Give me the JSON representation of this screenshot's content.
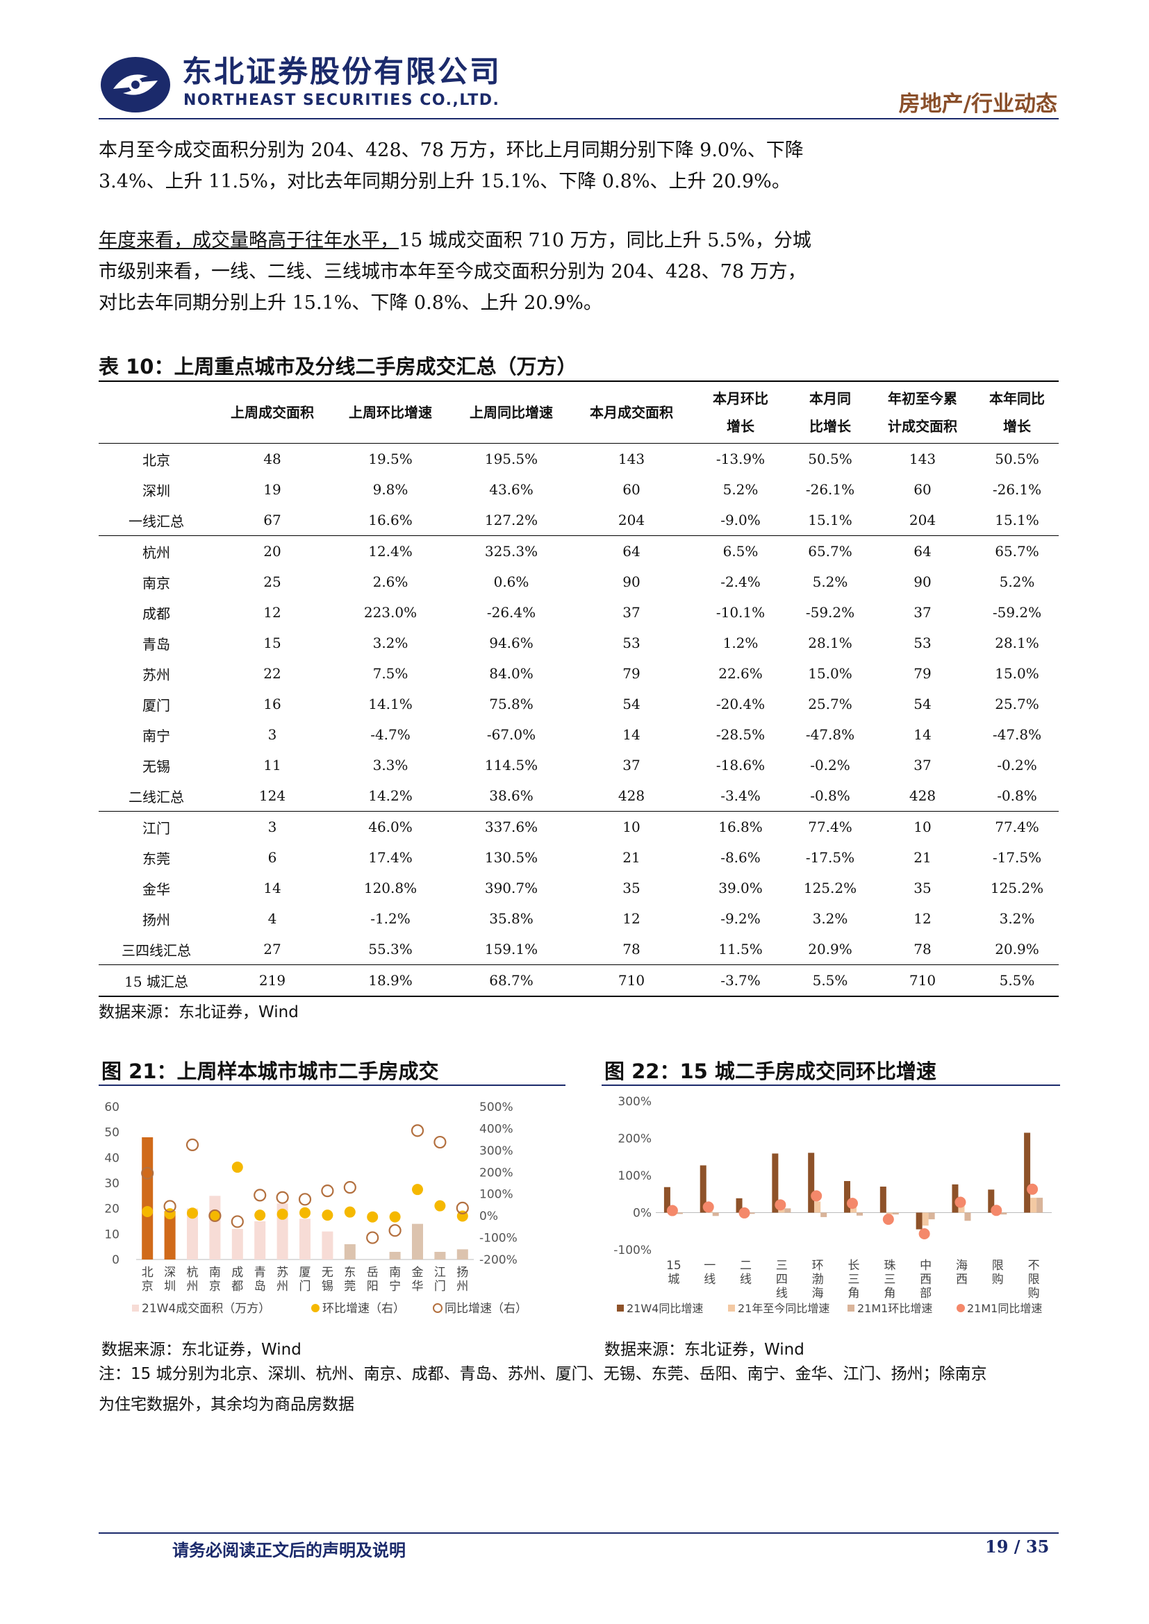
{
  "header": {
    "company_cn": "东北证券股份有限公司",
    "company_en": "NORTHEAST SECURITIES CO.,LTD.",
    "section_tag": "房地产/行业动态"
  },
  "paragraphs": {
    "p1_line1": "本月至今成交面积分别为 204、428、78 万方，环比上月同期分别下降 9.0%、下降",
    "p1_line2": "3.4%、上升 11.5%，对比去年同期分别上升 15.1%、下降 0.8%、上升 20.9%。",
    "p2_underlined": "年度来看，成交量略高于往年水平，",
    "p2_line1_rest": "15 城成交面积 710 万方，同比上升 5.5%，分城",
    "p2_line2": "市级别来看，一线、二线、三线城市本年至今成交面积分别为 204、428、78 万方，",
    "p2_line3": "对比去年同期分别上升 15.1%、下降 0.8%、上升 20.9%。"
  },
  "table": {
    "title": "表 10：上周重点城市及分线二手房成交汇总（万方）",
    "headers": [
      {
        "l1": "",
        "l2": ""
      },
      {
        "l1": "上周成交面积",
        "l2": ""
      },
      {
        "l1": "上周环比增速",
        "l2": ""
      },
      {
        "l1": "上周同比增速",
        "l2": ""
      },
      {
        "l1": "本月成交面积",
        "l2": ""
      },
      {
        "l1": "本月环比",
        "l2": "增长"
      },
      {
        "l1": "本月同",
        "l2": "比增长"
      },
      {
        "l1": "年初至今累",
        "l2": "计成交面积"
      },
      {
        "l1": "本年同比",
        "l2": "增长"
      }
    ],
    "rows": [
      [
        "北京",
        "48",
        "19.5%",
        "195.5%",
        "143",
        "-13.9%",
        "50.5%",
        "143",
        "50.5%"
      ],
      [
        "深圳",
        "19",
        "9.8%",
        "43.6%",
        "60",
        "5.2%",
        "-26.1%",
        "60",
        "-26.1%"
      ],
      [
        "一线汇总",
        "67",
        "16.6%",
        "127.2%",
        "204",
        "-9.0%",
        "15.1%",
        "204",
        "15.1%"
      ],
      [
        "杭州",
        "20",
        "12.4%",
        "325.3%",
        "64",
        "6.5%",
        "65.7%",
        "64",
        "65.7%"
      ],
      [
        "南京",
        "25",
        "2.6%",
        "0.6%",
        "90",
        "-2.4%",
        "5.2%",
        "90",
        "5.2%"
      ],
      [
        "成都",
        "12",
        "223.0%",
        "-26.4%",
        "37",
        "-10.1%",
        "-59.2%",
        "37",
        "-59.2%"
      ],
      [
        "青岛",
        "15",
        "3.2%",
        "94.6%",
        "53",
        "1.2%",
        "28.1%",
        "53",
        "28.1%"
      ],
      [
        "苏州",
        "22",
        "7.5%",
        "84.0%",
        "79",
        "22.6%",
        "15.0%",
        "79",
        "15.0%"
      ],
      [
        "厦门",
        "16",
        "14.1%",
        "75.8%",
        "54",
        "-20.4%",
        "25.7%",
        "54",
        "25.7%"
      ],
      [
        "南宁",
        "3",
        "-4.7%",
        "-67.0%",
        "14",
        "-28.5%",
        "-47.8%",
        "14",
        "-47.8%"
      ],
      [
        "无锡",
        "11",
        "3.3%",
        "114.5%",
        "37",
        "-18.6%",
        "-0.2%",
        "37",
        "-0.2%"
      ],
      [
        "二线汇总",
        "124",
        "14.2%",
        "38.6%",
        "428",
        "-3.4%",
        "-0.8%",
        "428",
        "-0.8%"
      ],
      [
        "江门",
        "3",
        "46.0%",
        "337.6%",
        "10",
        "16.8%",
        "77.4%",
        "10",
        "77.4%"
      ],
      [
        "东莞",
        "6",
        "17.4%",
        "130.5%",
        "21",
        "-8.6%",
        "-17.5%",
        "21",
        "-17.5%"
      ],
      [
        "金华",
        "14",
        "120.8%",
        "390.7%",
        "35",
        "39.0%",
        "125.2%",
        "35",
        "125.2%"
      ],
      [
        "扬州",
        "4",
        "-1.2%",
        "35.8%",
        "12",
        "-9.2%",
        "3.2%",
        "12",
        "3.2%"
      ],
      [
        "三四线汇总",
        "27",
        "55.3%",
        "159.1%",
        "78",
        "11.5%",
        "20.9%",
        "78",
        "20.9%"
      ],
      [
        "15 城汇总",
        "219",
        "18.9%",
        "68.7%",
        "710",
        "-3.7%",
        "5.5%",
        "710",
        "5.5%"
      ]
    ],
    "source": "数据来源：东北证券，Wind"
  },
  "fig21": {
    "title": "图 21：上周样本城市城市二手房成交",
    "source": "数据来源：东北证券，Wind"
  },
  "fig22": {
    "title": "图 22：15 城二手房成交同环比增速",
    "source": "数据来源：东北证券，Wind"
  },
  "chart_data": [
    {
      "type": "bar",
      "title": "图 21：上周样本城市城市二手房成交",
      "categories": [
        "北京",
        "深圳",
        "杭州",
        "南京",
        "成都",
        "青岛",
        "苏州",
        "厦门",
        "无锡",
        "东莞",
        "岳阳",
        "南宁",
        "金华",
        "江门",
        "扬州"
      ],
      "ylim_left": [
        0,
        60
      ],
      "yticks_left": [
        "60",
        "50",
        "40",
        "30",
        "20",
        "10",
        "0"
      ],
      "ylim_right": [
        -200,
        500
      ],
      "yticks_right": [
        "500%",
        "400%",
        "300%",
        "200%",
        "100%",
        "0%",
        "-100%",
        "-200%"
      ],
      "series": [
        {
          "name": "21W4成交面积（万方）",
          "kind": "bar",
          "axis": "left",
          "values": [
            48,
            19,
            20,
            25,
            12,
            15,
            22,
            16,
            11,
            6,
            0,
            3,
            14,
            3,
            4
          ]
        },
        {
          "name": "环比增速（右）",
          "kind": "dot",
          "axis": "right",
          "values": [
            19.5,
            9.8,
            12.4,
            2.6,
            223.0,
            3.2,
            7.5,
            14.1,
            3.3,
            17.4,
            -5,
            -4.7,
            120.8,
            46.0,
            -1.2
          ]
        },
        {
          "name": "同比增速（右）",
          "kind": "ring",
          "axis": "right",
          "values": [
            195.5,
            43.6,
            325.3,
            0.6,
            -26.4,
            94.6,
            84.0,
            75.8,
            114.5,
            130.5,
            -100,
            -67.0,
            390.7,
            337.6,
            35.8
          ]
        }
      ],
      "colors": {
        "bar_first_tier": "#d06a1a",
        "bar_second_tier": "#f7dcd6",
        "bar_third_tier": "#dcc3ae",
        "dot": "#f5b800",
        "ring": "#b3703f"
      },
      "legend": "bottom"
    },
    {
      "type": "bar",
      "title": "图 22：15 城二手房成交同环比增速",
      "categories": [
        "15城",
        "一线",
        "二线",
        "三四线",
        "环渤海",
        "长三角",
        "珠三角",
        "中西部",
        "海西",
        "限购",
        "不限购"
      ],
      "ylim": [
        -100,
        300
      ],
      "yticks": [
        "300%",
        "200%",
        "100%",
        "0%",
        "-100%"
      ],
      "series": [
        {
          "name": "21W4同比增速",
          "kind": "bar",
          "values": [
            68.7,
            127.2,
            38.6,
            159.1,
            161,
            85,
            70,
            -45,
            76,
            62,
            215
          ]
        },
        {
          "name": "21年至今同比增速",
          "kind": "bar",
          "values": [
            5.5,
            15.1,
            -0.8,
            20.9,
            30,
            20,
            -5,
            -35,
            22,
            10,
            40
          ]
        },
        {
          "name": "21M1环比增速",
          "kind": "bar",
          "values": [
            -3.7,
            -9.0,
            -3.4,
            11.5,
            -12,
            -8,
            -5,
            -18,
            -22,
            -5,
            40
          ]
        },
        {
          "name": "21M1同比增速",
          "kind": "dot",
          "values": [
            5.5,
            15.1,
            -0.8,
            20.9,
            45,
            25,
            -18,
            -57,
            28,
            6,
            63
          ]
        }
      ],
      "colors": {
        "s1": "#8e5229",
        "s2": "#f3c9a3",
        "s3": "#d9b49a",
        "s4": "#f4886a"
      },
      "legend": "bottom"
    }
  ],
  "note": {
    "line1": "注：15 城分别为北京、深圳、杭州、南京、成都、青岛、苏州、厦门、无锡、东莞、岳阳、南宁、金华、江门、扬州；除南京",
    "line2": "为住宅数据外，其余均为商品房数据"
  },
  "footer": {
    "disclaimer": "请务必阅读正文后的声明及说明",
    "page": "19 / 35"
  }
}
